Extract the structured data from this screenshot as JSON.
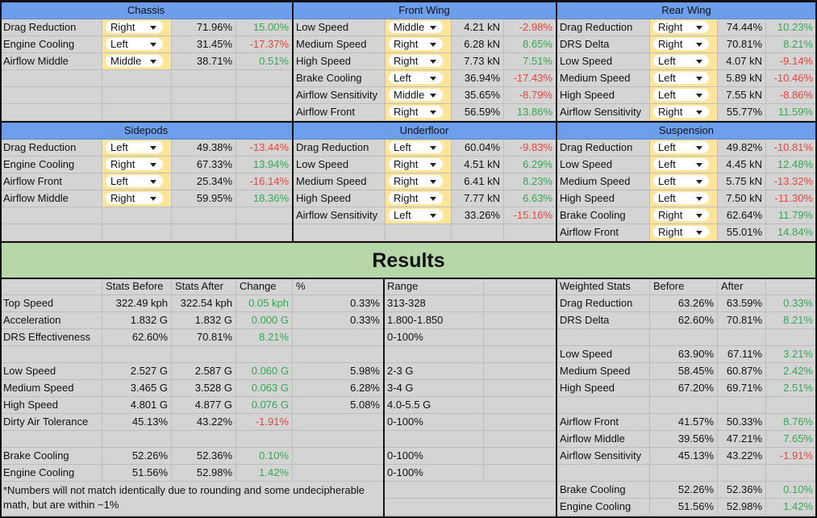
{
  "panels": [
    {
      "title": "Chassis",
      "rows": [
        [
          "Drag Reduction",
          "Right",
          "71.96%",
          "15.00%"
        ],
        [
          "Engine Cooling",
          "Left",
          "31.45%",
          "-17.37%"
        ],
        [
          "Airflow Middle",
          "Middle",
          "38.71%",
          "0.51%"
        ]
      ]
    },
    {
      "title": "Front Wing",
      "rows": [
        [
          "Low Speed",
          "Middle",
          "4.21 kN",
          "-2.98%"
        ],
        [
          "Medium Speed",
          "Right",
          "6.28 kN",
          "8.65%"
        ],
        [
          "High Speed",
          "Right",
          "7.73 kN",
          "7.51%"
        ],
        [
          "Brake Cooling",
          "Left",
          "36.94%",
          "-17.43%"
        ],
        [
          "Airflow Sensitivity",
          "Middle",
          "35.65%",
          "-8.79%"
        ],
        [
          "Airflow Front",
          "Right",
          "56.59%",
          "13.86%"
        ]
      ]
    },
    {
      "title": "Rear Wing",
      "rows": [
        [
          "Drag Reduction",
          "Right",
          "74.44%",
          "10.23%"
        ],
        [
          "DRS Delta",
          "Right",
          "70.81%",
          "8.21%"
        ],
        [
          "Low Speed",
          "Left",
          "4.07 kN",
          "-9.14%"
        ],
        [
          "Medium Speed",
          "Left",
          "5.89 kN",
          "-10.46%"
        ],
        [
          "High Speed",
          "Left",
          "7.55 kN",
          "-8.86%"
        ],
        [
          "Airflow Sensitivity",
          "Right",
          "55.77%",
          "11.59%"
        ]
      ]
    },
    {
      "title": "Sidepods",
      "rows": [
        [
          "Drag Reduction",
          "Left",
          "49.38%",
          "-13.44%"
        ],
        [
          "Engine Cooling",
          "Right",
          "67.33%",
          "13.94%"
        ],
        [
          "Airflow Front",
          "Left",
          "25.34%",
          "-16.14%"
        ],
        [
          "Airflow Middle",
          "Right",
          "59.95%",
          "18.36%"
        ]
      ]
    },
    {
      "title": "Underfloor",
      "rows": [
        [
          "Drag Reduction",
          "Left",
          "60.04%",
          "-9.83%"
        ],
        [
          "Low Speed",
          "Right",
          "4.51 kN",
          "6.29%"
        ],
        [
          "Medium Speed",
          "Right",
          "6.41 kN",
          "8.23%"
        ],
        [
          "High Speed",
          "Right",
          "7.77 kN",
          "6.63%"
        ],
        [
          "Airflow Sensitivity",
          "Left",
          "33.26%",
          "-15.16%"
        ]
      ]
    },
    {
      "title": "Suspension",
      "rows": [
        [
          "Drag Reduction",
          "Left",
          "49.82%",
          "-10.81%"
        ],
        [
          "Low Speed",
          "Left",
          "4.45 kN",
          "12.48%"
        ],
        [
          "Medium Speed",
          "Left",
          "5.75 kN",
          "-13.32%"
        ],
        [
          "High Speed",
          "Left",
          "7.50 kN",
          "-11.30%"
        ],
        [
          "Brake Cooling",
          "Right",
          "62.64%",
          "11.79%"
        ],
        [
          "Airflow Front",
          "Right",
          "55.01%",
          "14.84%"
        ]
      ]
    }
  ],
  "results": {
    "title": "Results",
    "stats": {
      "header": [
        null,
        "Stats Before",
        "Stats After",
        "Change",
        "%",
        "Range"
      ],
      "rows": [
        [
          "Top Speed",
          "322.49 kph",
          "322.54 kph",
          "0.05 kph",
          "0.33%",
          "313-328"
        ],
        [
          "Acceleration",
          "1.832 G",
          "1.832 G",
          "0.000 G",
          "0.33%",
          "1.800-1.850"
        ],
        [
          "DRS Effectiveness",
          "62.60%",
          "70.81%",
          "8.21%",
          null,
          "0-100%"
        ],
        null,
        [
          "Low Speed",
          "2.527 G",
          "2.587 G",
          "0.060 G",
          "5.98%",
          "2-3 G"
        ],
        [
          "Medium Speed",
          "3.465 G",
          "3.528 G",
          "0.063 G",
          "6.28%",
          "3-4 G"
        ],
        [
          "High Speed",
          "4.801 G",
          "4.877 G",
          "0.076 G",
          "5.08%",
          "4.0-5.5 G"
        ],
        [
          "Dirty Air Tolerance",
          "45.13%",
          "43.22%",
          "-1.91%",
          null,
          "0-100%"
        ],
        null,
        [
          "Brake Cooling",
          "52.26%",
          "52.36%",
          "0.10%",
          null,
          "0-100%"
        ],
        [
          "Engine Cooling",
          "51.56%",
          "52.98%",
          "1.42%",
          null,
          "0-100%"
        ]
      ]
    },
    "note": "*Numbers will not match identically due to rounding and some undecipherable math, but are within ~1%",
    "weighted": {
      "header": [
        "Weighted Stats",
        "Before",
        "After"
      ],
      "rows": [
        [
          "Drag Reduction",
          "63.26%",
          "63.59%",
          "0.33%"
        ],
        [
          "DRS Delta",
          "62.60%",
          "70.81%",
          "8.21%"
        ],
        null,
        [
          "Low Speed",
          "63.90%",
          "67.11%",
          "3.21%"
        ],
        [
          "Medium Speed",
          "58.45%",
          "60.87%",
          "2.42%"
        ],
        [
          "High Speed",
          "67.20%",
          "69.71%",
          "2.51%"
        ],
        null,
        [
          "Airflow Front",
          "41.57%",
          "50.33%",
          "8.76%"
        ],
        [
          "Airflow Middle",
          "39.56%",
          "47.21%",
          "7.65%"
        ],
        [
          "Airflow Sensitivity",
          "45.13%",
          "43.22%",
          "-1.91%"
        ],
        null,
        [
          "Brake Cooling",
          "52.26%",
          "52.36%",
          "0.10%"
        ],
        [
          "Engine Cooling",
          "51.56%",
          "52.98%",
          "1.42%"
        ]
      ]
    }
  }
}
